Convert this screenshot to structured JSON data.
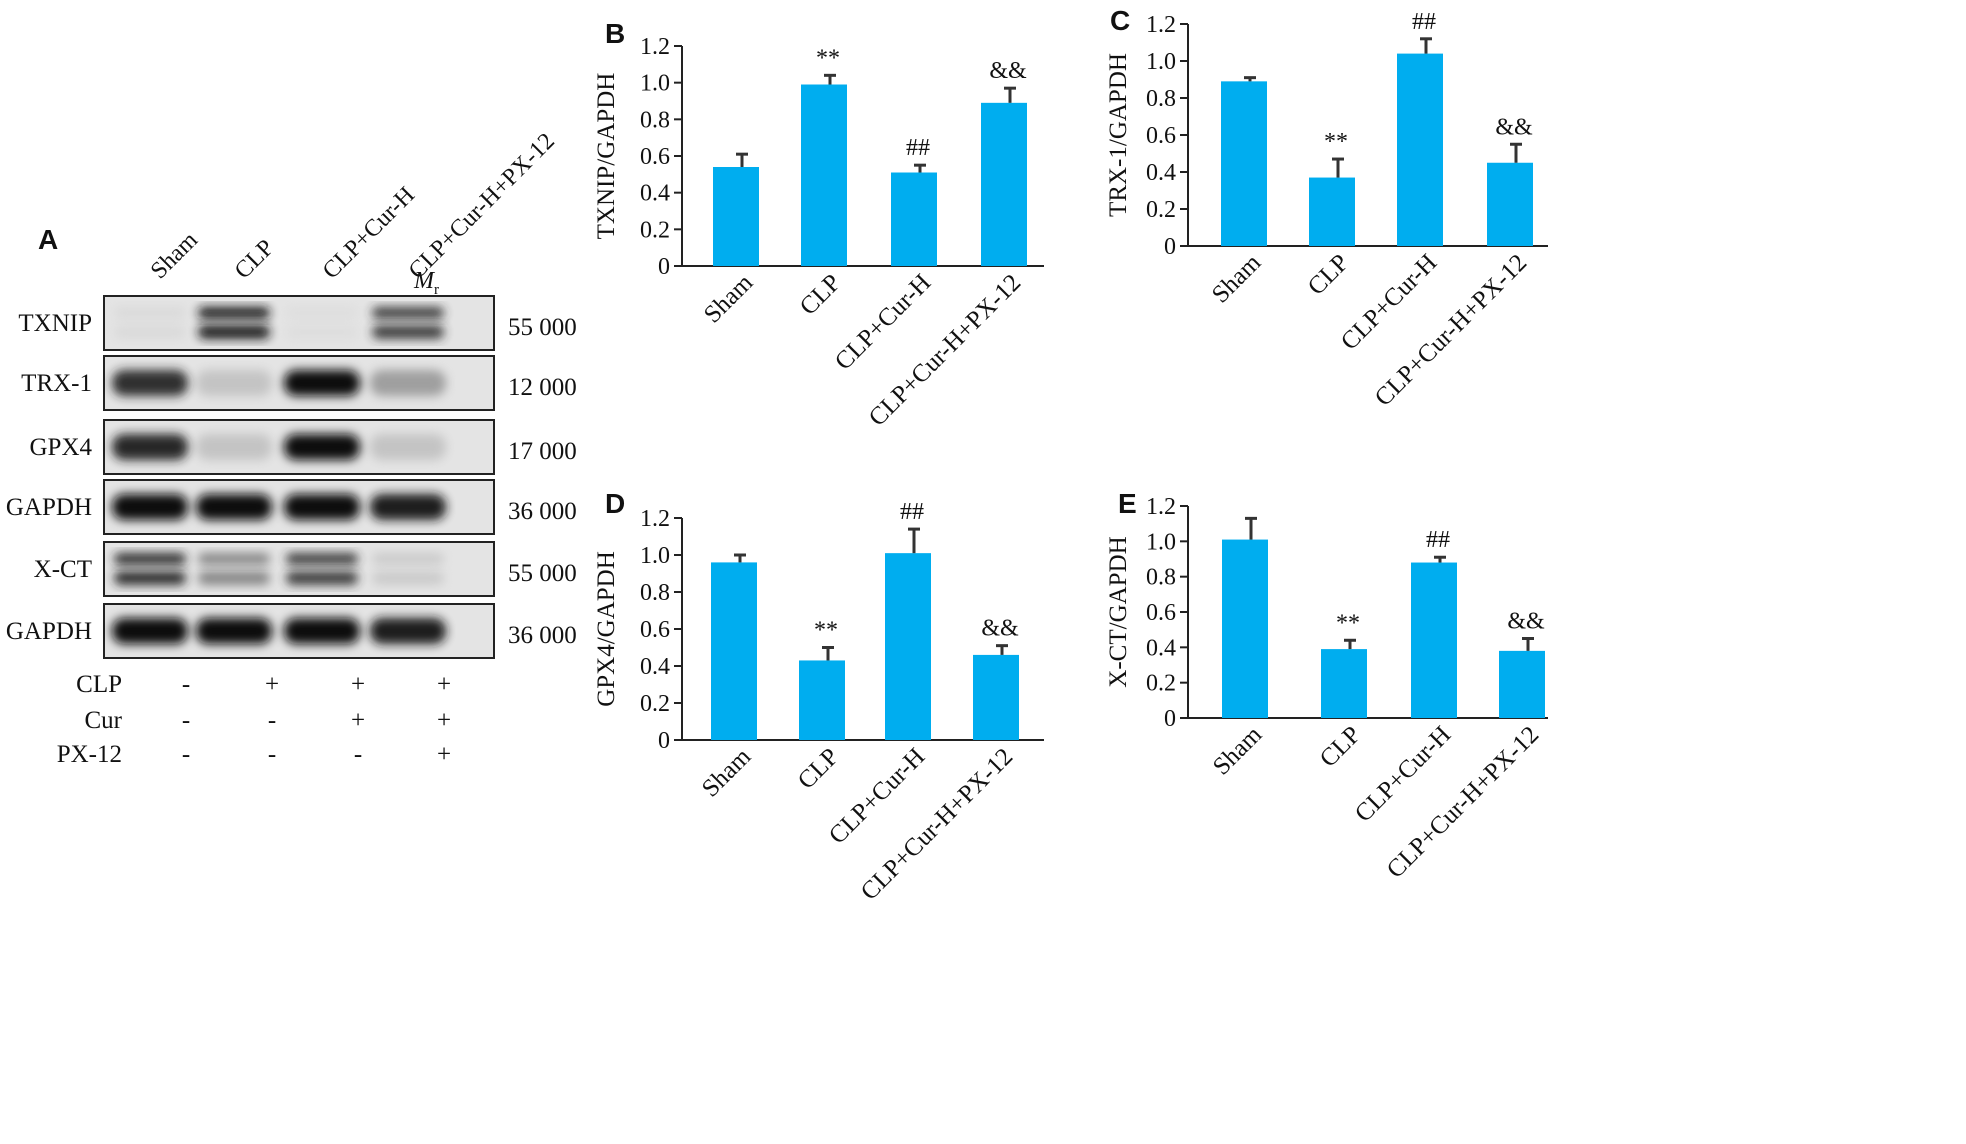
{
  "panel_a": {
    "letter": "A",
    "lanes": [
      "Sham",
      "CLP",
      "CLP+Cur-H",
      "CLP+Cur-H+PX-12"
    ],
    "mr_label": "M",
    "mr_sub": "r",
    "blots": [
      {
        "name": "TXNIP",
        "mr": "55 000",
        "intensity": [
          0.12,
          0.95,
          0.08,
          0.85
        ],
        "doublet": true
      },
      {
        "name": "TRX-1",
        "mr": "12 000",
        "intensity": [
          0.9,
          0.3,
          1.0,
          0.5
        ],
        "doublet": false
      },
      {
        "name": "GPX4",
        "mr": "17 000",
        "intensity": [
          0.92,
          0.3,
          1.0,
          0.3
        ],
        "doublet": false
      },
      {
        "name": "GAPDH",
        "mr": "36 000",
        "intensity": [
          1.0,
          1.0,
          1.0,
          0.95
        ],
        "doublet": false
      },
      {
        "name": "X-CT",
        "mr": "55 000",
        "intensity": [
          0.9,
          0.6,
          0.85,
          0.25
        ],
        "doublet": true
      },
      {
        "name": "GAPDH",
        "mr": "36 000",
        "intensity": [
          1.0,
          1.0,
          1.0,
          0.95
        ],
        "doublet": false
      }
    ],
    "treatments": [
      {
        "label": "CLP",
        "signs": [
          "-",
          "+",
          "+",
          "+"
        ]
      },
      {
        "label": "Cur",
        "signs": [
          "-",
          "-",
          "+",
          "+"
        ]
      },
      {
        "label": "PX-12",
        "signs": [
          "-",
          "-",
          "-",
          "+"
        ]
      }
    ]
  },
  "colors": {
    "bar": "#00adef",
    "axis": "#222222",
    "error": "#333333"
  },
  "chart_data": [
    {
      "panel": "B",
      "type": "bar",
      "categories": [
        "Sham",
        "CLP",
        "CLP+Cur-H",
        "CLP+Cur-H+PX-12"
      ],
      "values": [
        0.54,
        0.99,
        0.51,
        0.89
      ],
      "errors": [
        0.07,
        0.05,
        0.04,
        0.08
      ],
      "annotations": [
        "",
        "**",
        "##",
        "&&"
      ],
      "ylabel": "TXNIP/GAPDH",
      "ylim": [
        0,
        1.2
      ],
      "yticks": [
        "0",
        "0.2",
        "0.4",
        "0.6",
        "0.8",
        "1.0",
        "1.2"
      ]
    },
    {
      "panel": "C",
      "type": "bar",
      "categories": [
        "Sham",
        "CLP",
        "CLP+Cur-H",
        "CLP+Cur-H+PX-12"
      ],
      "values": [
        0.89,
        0.37,
        1.04,
        0.45
      ],
      "errors": [
        0.02,
        0.1,
        0.08,
        0.1
      ],
      "annotations": [
        "",
        "**",
        "##",
        "&&"
      ],
      "ylabel": "TRX-1/GAPDH",
      "ylim": [
        0,
        1.2
      ],
      "yticks": [
        "0",
        "0.2",
        "0.4",
        "0.6",
        "0.8",
        "1.0",
        "1.2"
      ]
    },
    {
      "panel": "D",
      "type": "bar",
      "categories": [
        "Sham",
        "CLP",
        "CLP+Cur-H",
        "CLP+Cur-H+PX-12"
      ],
      "values": [
        0.96,
        0.43,
        1.01,
        0.46
      ],
      "errors": [
        0.04,
        0.07,
        0.13,
        0.05
      ],
      "annotations": [
        "",
        "**",
        "##",
        "&&"
      ],
      "ylabel": "GPX4/GAPDH",
      "ylim": [
        0,
        1.2
      ],
      "yticks": [
        "0",
        "0.2",
        "0.4",
        "0.6",
        "0.8",
        "1.0",
        "1.2"
      ]
    },
    {
      "panel": "E",
      "type": "bar",
      "categories": [
        "Sham",
        "CLP",
        "CLP+Cur-H",
        "CLP+Cur-H+PX-12"
      ],
      "values": [
        1.01,
        0.39,
        0.88,
        0.38
      ],
      "errors": [
        0.12,
        0.05,
        0.03,
        0.07
      ],
      "annotations": [
        "",
        "**",
        "##",
        "&&"
      ],
      "ylabel": "X-CT/GAPDH",
      "ylim": [
        0,
        1.2
      ],
      "yticks": [
        "0",
        "0.2",
        "0.4",
        "0.6",
        "0.8",
        "1.0",
        "1.2"
      ]
    }
  ]
}
